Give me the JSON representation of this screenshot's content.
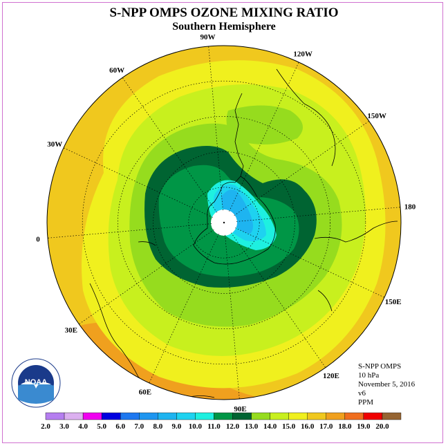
{
  "title": "S-NPP OMPS OZONE MIXING RATIO",
  "subtitle": "Southern Hemisphere",
  "longitude_labels": [
    {
      "text": "90W",
      "lon": -90
    },
    {
      "text": "60W",
      "lon": -60
    },
    {
      "text": "30W",
      "lon": -30
    },
    {
      "text": "0",
      "lon": 0
    },
    {
      "text": "30E",
      "lon": 30
    },
    {
      "text": "60E",
      "lon": 60
    },
    {
      "text": "90E",
      "lon": 90
    },
    {
      "text": "120E",
      "lon": 120
    },
    {
      "text": "150E",
      "lon": 150
    },
    {
      "text": "180",
      "lon": 180
    },
    {
      "text": "150W",
      "lon": -150
    },
    {
      "text": "120W",
      "lon": -120
    }
  ],
  "info": {
    "instrument": "S-NPP OMPS",
    "level": "10 hPa",
    "date": "November 5, 2016",
    "version": "v6",
    "units": "PPM"
  },
  "logo_text": "NOAA",
  "colorbar": {
    "labels": [
      "2.0",
      "3.0",
      "4.0",
      "5.0",
      "6.0",
      "7.0",
      "8.0",
      "9.0",
      "10.0",
      "11.0",
      "12.0",
      "13.0",
      "14.0",
      "15.0",
      "16.0",
      "17.0",
      "18.0",
      "19.0",
      "20.0"
    ],
    "colors": [
      "#b57ef0",
      "#dcb0f0",
      "#f000f0",
      "#0000e0",
      "#1e78f0",
      "#1e96f0",
      "#1eb4f0",
      "#1ed2f0",
      "#1ef0e0",
      "#009646",
      "#006432",
      "#96dc1e",
      "#c8f01e",
      "#f0f01e",
      "#f0c81e",
      "#f0a01e",
      "#f06e1e",
      "#f00000",
      "#966432"
    ]
  },
  "colors": {
    "coast": "#000000",
    "grid": "#000000",
    "frame": "#d070d0"
  }
}
